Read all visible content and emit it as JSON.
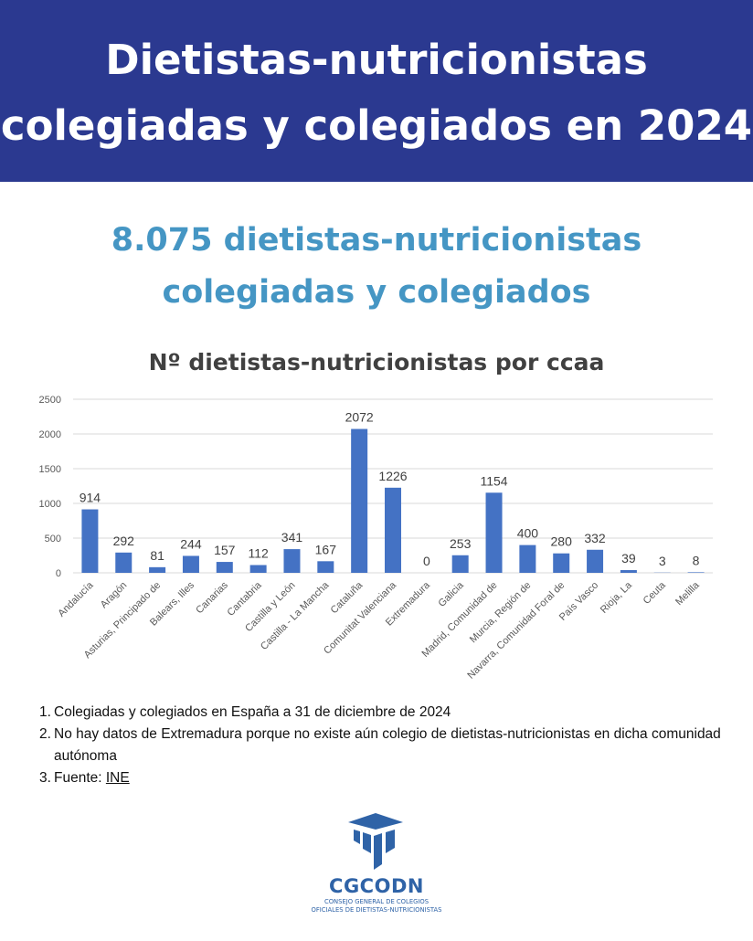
{
  "header": {
    "title_line1": "Dietistas-nutricionistas",
    "title_line2": "colegiadas y colegiados en 2024"
  },
  "summary": {
    "line1": "8.075 dietistas-nutricionistas",
    "line2": "colegiadas y colegiados"
  },
  "colors": {
    "banner": "#2b3990",
    "summary_text": "#4596c4",
    "bar": "#4472c4",
    "logo": "#2f63a7"
  },
  "chart_data": {
    "type": "bar",
    "title": "Nº dietistas-nutricionistas por ccaa",
    "xlabel": "",
    "ylabel": "",
    "ylim": [
      0,
      2500
    ],
    "yticks": [
      0,
      500,
      1000,
      1500,
      2000,
      2500
    ],
    "grid": true,
    "categories": [
      "Andalucía",
      "Aragón",
      "Asturias, Principado de",
      "Balears, Illes",
      "Canarias",
      "Cantabria",
      "Castilla y León",
      "Castilla - La Mancha",
      "Cataluña",
      "Comunitat Valenciana",
      "Extremadura",
      "Galicia",
      "Madrid, Comunidad de",
      "Murcia, Región de",
      "Navarra, Comunidad Foral de",
      "País Vasco",
      "Rioja, La",
      "Ceuta",
      "Melilla"
    ],
    "values": [
      914,
      292,
      81,
      244,
      157,
      112,
      341,
      167,
      2072,
      1226,
      0,
      253,
      1154,
      400,
      280,
      332,
      39,
      3,
      8
    ]
  },
  "notes": [
    {
      "num": "1.",
      "text": "Colegiadas y colegiados en España a 31 de diciembre de 2024"
    },
    {
      "num": "2.",
      "text": "No hay datos de Extremadura porque no existe aún colegio de dietistas-nutricionistas en dicha comunidad autónoma"
    },
    {
      "num": "3.",
      "text": "Fuente: ",
      "link": "INE"
    }
  ],
  "logo": {
    "name": "CGCODN",
    "line1": "CONSEJO GENERAL DE COLEGIOS",
    "line2": "OFICIALES DE DIETISTAS-NUTRICIONISTAS"
  }
}
